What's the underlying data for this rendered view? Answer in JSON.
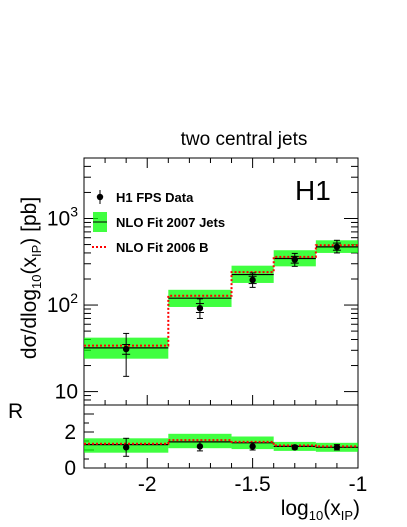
{
  "chart_data": {
    "type": "histogram",
    "title": "two central jets",
    "experiment_label": "H1",
    "xlabel": "log10(xIP)",
    "ylabel": "dσ/dlog10(xIP) [pb]",
    "ratio_ylabel": "R",
    "xlim": [
      -2.3,
      -1.0
    ],
    "ylim": [
      7,
      5000
    ],
    "yscale": "log",
    "ratio_ylim": [
      0,
      3.5
    ],
    "x_ticks": [
      {
        "value": -2.0,
        "label": "-2"
      },
      {
        "value": -1.5,
        "label": "-1.5"
      },
      {
        "value": -1.0,
        "label": "-1"
      }
    ],
    "y_ticks": [
      {
        "value": 10,
        "label": "10",
        "exp": ""
      },
      {
        "value": 100,
        "label": "10",
        "exp": "2"
      },
      {
        "value": 1000,
        "label": "10",
        "exp": "3"
      }
    ],
    "ratio_ticks": [
      {
        "value": 0,
        "label": "0"
      },
      {
        "value": 2,
        "label": "2"
      }
    ],
    "bin_edges": [
      -2.3,
      -1.9,
      -1.6,
      -1.4,
      -1.2,
      -1.0
    ],
    "legend": [
      {
        "name": "H1 FPS Data",
        "style": "data",
        "color": "#000000"
      },
      {
        "name": "NLO Fit 2007 Jets",
        "style": "band",
        "color": "#00ff00"
      },
      {
        "name": "NLO Fit 2006 B",
        "style": "dotted",
        "color": "#ff0000"
      }
    ],
    "series": [
      {
        "name": "H1 FPS Data",
        "x": [
          -2.1,
          -1.75,
          -1.5,
          -1.3,
          -1.1
        ],
        "y": [
          31,
          92,
          195,
          335,
          470
        ],
        "stat_err": [
          [
            27,
            35
          ],
          [
            82,
            104
          ],
          [
            177,
            215
          ],
          [
            305,
            365
          ],
          [
            430,
            520
          ]
        ],
        "tot_err": [
          [
            15,
            47
          ],
          [
            70,
            118
          ],
          [
            160,
            235
          ],
          [
            280,
            395
          ],
          [
            400,
            560
          ]
        ]
      },
      {
        "name": "NLO Fit 2007 Jets",
        "central": [
          32,
          120,
          225,
          345,
          470
        ],
        "band_low": [
          24,
          95,
          180,
          280,
          400
        ],
        "band_high": [
          42,
          150,
          285,
          430,
          560
        ]
      },
      {
        "name": "NLO Fit 2006 B",
        "values": [
          34,
          128,
          240,
          360,
          490
        ]
      }
    ],
    "ratio": {
      "data": [
        1.15,
        1.2,
        1.2,
        1.15,
        1.15
      ],
      "data_err": [
        [
          0.65,
          1.65
        ],
        [
          0.95,
          1.45
        ],
        [
          1.0,
          1.4
        ],
        [
          1.05,
          1.25
        ],
        [
          1.0,
          1.3
        ]
      ],
      "band_low": [
        0.85,
        1.1,
        1.05,
        0.95,
        0.9
      ],
      "band_high": [
        1.65,
        1.9,
        1.75,
        1.45,
        1.4
      ],
      "central": [
        1.3,
        1.45,
        1.4,
        1.2,
        1.15
      ],
      "nlo2006": [
        1.35,
        1.55,
        1.45,
        1.25,
        1.2
      ]
    },
    "grid": false
  }
}
